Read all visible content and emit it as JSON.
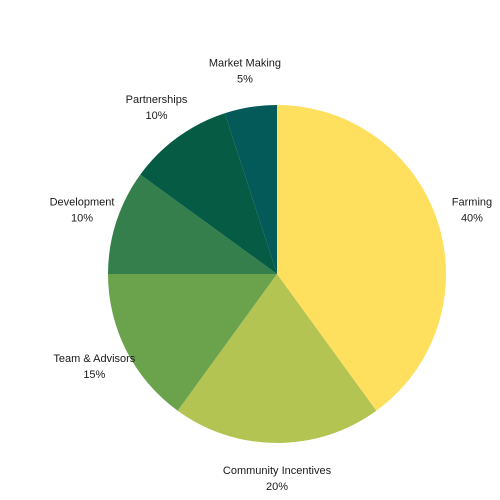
{
  "chart_data": {
    "type": "pie",
    "title": "",
    "start_angle_deg": 0,
    "direction": "clockwise",
    "slices": [
      {
        "name": "Farming",
        "value": 40,
        "label": "40%",
        "color": "#FFDF5E"
      },
      {
        "name": "Community Incentives",
        "value": 20,
        "label": "20%",
        "color": "#B4C452"
      },
      {
        "name": "Team & Advisors",
        "value": 15,
        "label": "15%",
        "color": "#6BA24C"
      },
      {
        "name": "Development",
        "value": 10,
        "label": "10%",
        "color": "#347F4C"
      },
      {
        "name": "Partnerships",
        "value": 10,
        "label": "10%",
        "color": "#055B44"
      },
      {
        "name": "Market Making",
        "value": 5,
        "label": "5%",
        "color": "#035A58"
      }
    ],
    "legend": "none"
  }
}
